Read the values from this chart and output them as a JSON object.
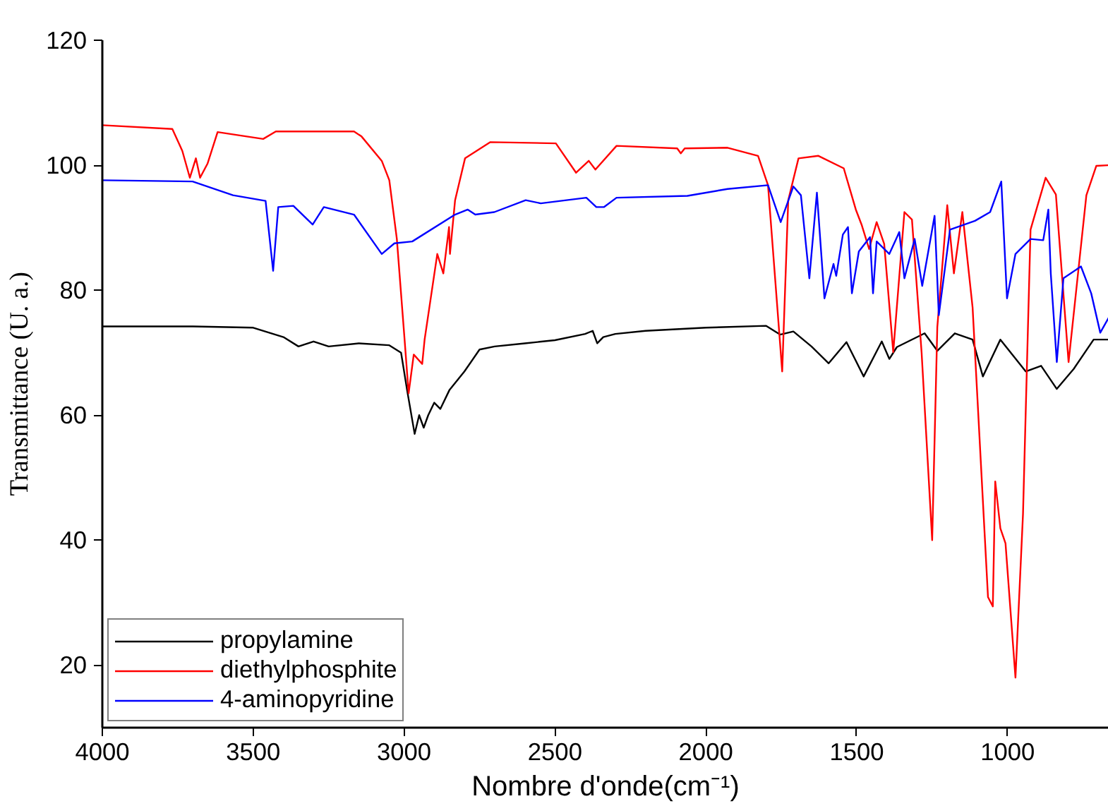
{
  "chart_data": {
    "type": "line",
    "xlabel": "Nombre d'onde(cm⁻¹)",
    "ylabel": "Transmittance (U. a.)",
    "xlim": [
      4000,
      665
    ],
    "xticks": [
      4000,
      3500,
      3000,
      2500,
      2000,
      1500,
      1000
    ],
    "ylim": [
      10,
      120
    ],
    "yticks": [
      20,
      40,
      60,
      80,
      100,
      120
    ],
    "grid": false,
    "legend": "bottom left",
    "marker": "none",
    "line_style": "solid",
    "series": [
      {
        "name": "propylamine",
        "color": "#000000",
        "x": [
          4000,
          3700,
          3500,
          3400,
          3350,
          3300,
          3250,
          3150,
          3050,
          3010,
          2990,
          2965,
          2950,
          2935,
          2920,
          2900,
          2880,
          2850,
          2800,
          2750,
          2700,
          2600,
          2500,
          2400,
          2375,
          2360,
          2340,
          2300,
          2200,
          2000,
          1800,
          1754,
          1710,
          1650,
          1593,
          1534,
          1477,
          1417,
          1392,
          1367,
          1275,
          1233,
          1175,
          1116,
          1082,
          1024,
          940,
          889,
          837,
          781,
          715,
          665
        ],
        "values": [
          74.2,
          74.2,
          74.0,
          72.5,
          71.0,
          71.8,
          71.0,
          71.5,
          71.2,
          70.0,
          64.0,
          57.0,
          60.0,
          58.0,
          60.0,
          62.0,
          61.0,
          64.0,
          67.0,
          70.5,
          71.0,
          71.5,
          72.0,
          73.0,
          73.5,
          71.5,
          72.5,
          73.0,
          73.5,
          74.0,
          74.3,
          72.9,
          73.4,
          71.0,
          68.3,
          71.7,
          66.2,
          71.8,
          69.0,
          70.9,
          73.1,
          70.3,
          73.1,
          72.1,
          66.2,
          72.1,
          67.0,
          67.9,
          64.2,
          67.4,
          72.1,
          72.1
        ]
      },
      {
        "name": "diethylphosphite",
        "color": "#ff0000",
        "x": [
          4000,
          3768,
          3735,
          3710,
          3690,
          3676,
          3651,
          3618,
          3467,
          3425,
          3166,
          3141,
          3074,
          3049,
          3024,
          2999,
          2985,
          2968,
          2940,
          2932,
          2890,
          2870,
          2851,
          2848,
          2831,
          2798,
          2714,
          2497,
          2430,
          2388,
          2366,
          2296,
          2095,
          2083,
          2070,
          1928,
          1827,
          1794,
          1747,
          1727,
          1693,
          1627,
          1543,
          1503,
          1484,
          1459,
          1434,
          1409,
          1379,
          1342,
          1317,
          1285,
          1250,
          1233,
          1200,
          1178,
          1150,
          1116,
          1065,
          1049,
          1041,
          1024,
          1007,
          974,
          949,
          924,
          874,
          840,
          798,
          739,
          706,
          665
        ],
        "values": [
          106.4,
          105.8,
          102.3,
          98.0,
          101.1,
          98.0,
          100.3,
          105.3,
          104.2,
          105.4,
          105.4,
          104.6,
          100.7,
          97.6,
          88.2,
          72.5,
          63.5,
          69.7,
          68.2,
          72.1,
          85.8,
          82.7,
          90.1,
          85.8,
          94.4,
          101.1,
          103.7,
          103.5,
          98.8,
          100.7,
          99.3,
          103.1,
          102.7,
          101.9,
          102.7,
          102.8,
          101.5,
          96.8,
          67.0,
          94.4,
          101.1,
          101.5,
          99.5,
          92.9,
          90.5,
          86.6,
          90.9,
          87.4,
          70.1,
          92.5,
          91.3,
          70.0,
          40.0,
          74.1,
          93.6,
          82.7,
          92.5,
          77.2,
          30.9,
          29.4,
          49.4,
          41.9,
          39.5,
          18.0,
          44.2,
          89.7,
          98.0,
          95.3,
          68.5,
          95.2,
          99.9,
          100.0
        ]
      },
      {
        "name": "4-aminopyridine",
        "color": "#0000ff",
        "x": [
          4000,
          3701,
          3567,
          3459,
          3434,
          3417,
          3367,
          3303,
          3266,
          3166,
          3074,
          3032,
          2973,
          2831,
          2789,
          2764,
          2701,
          2597,
          2547,
          2396,
          2363,
          2338,
          2296,
          2061,
          1928,
          1794,
          1752,
          1710,
          1685,
          1657,
          1632,
          1607,
          1577,
          1568,
          1546,
          1529,
          1516,
          1493,
          1456,
          1446,
          1434,
          1392,
          1359,
          1342,
          1308,
          1283,
          1242,
          1228,
          1191,
          1108,
          1058,
          1021,
          1002,
          974,
          924,
          882,
          865,
          857,
          837,
          815,
          757,
          723,
          693,
          665
        ],
        "values": [
          97.6,
          97.4,
          95.2,
          94.3,
          83.1,
          93.3,
          93.5,
          90.5,
          93.3,
          92.1,
          85.8,
          87.5,
          87.8,
          92.1,
          92.9,
          92.1,
          92.5,
          94.4,
          93.9,
          94.8,
          93.3,
          93.3,
          94.8,
          95.1,
          96.2,
          96.8,
          90.9,
          96.6,
          95.2,
          81.9,
          95.6,
          78.7,
          84.2,
          82.3,
          88.9,
          90.1,
          79.5,
          86.2,
          88.5,
          79.5,
          87.8,
          85.8,
          89.3,
          81.9,
          88.2,
          80.7,
          91.9,
          76.0,
          89.7,
          91.1,
          92.5,
          97.4,
          78.7,
          85.8,
          88.2,
          88.0,
          92.9,
          82.7,
          68.5,
          81.9,
          83.8,
          79.5,
          73.2,
          75.6
        ]
      }
    ]
  }
}
